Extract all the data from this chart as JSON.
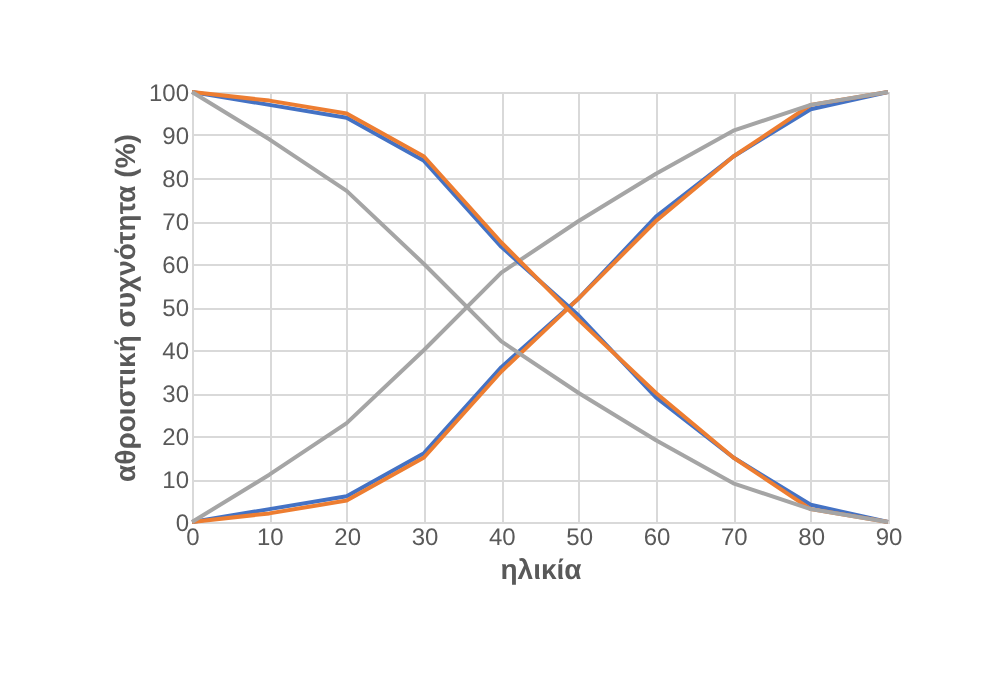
{
  "chart_data": {
    "type": "line",
    "xlabel": "ηλικία",
    "ylabel": "αθροιστική συχνότητα (%)",
    "x": [
      0,
      10,
      20,
      30,
      40,
      50,
      60,
      70,
      80,
      90
    ],
    "series": [
      {
        "color": "#4472c4",
        "values": [
          0,
          3,
          6,
          16,
          36,
          52,
          71,
          85,
          96,
          100
        ]
      },
      {
        "color": "#ed7d31",
        "values": [
          0,
          2,
          5,
          15,
          35,
          52,
          70,
          85,
          97,
          100
        ]
      },
      {
        "color": "#a5a5a5",
        "values": [
          0,
          11,
          23,
          40,
          58,
          70,
          81,
          91,
          97,
          100
        ]
      },
      {
        "color": "#4472c4",
        "values": [
          100,
          97,
          94,
          84,
          64,
          48,
          29,
          15,
          4,
          0
        ]
      },
      {
        "color": "#ed7d31",
        "values": [
          100,
          98,
          95,
          85,
          65,
          47,
          30,
          15,
          3,
          0
        ]
      },
      {
        "color": "#a5a5a5",
        "values": [
          100,
          89,
          77,
          60,
          42,
          30,
          19,
          9,
          3,
          0
        ]
      }
    ],
    "xlim": [
      0,
      90
    ],
    "xticks": [
      0,
      10,
      20,
      30,
      40,
      50,
      60,
      70,
      80,
      90
    ],
    "ylim": [
      0,
      100
    ],
    "yticks": [
      0,
      10,
      20,
      30,
      40,
      50,
      60,
      70,
      80,
      90,
      100
    ],
    "grid": true,
    "marker": "none",
    "line_style": "solid"
  }
}
